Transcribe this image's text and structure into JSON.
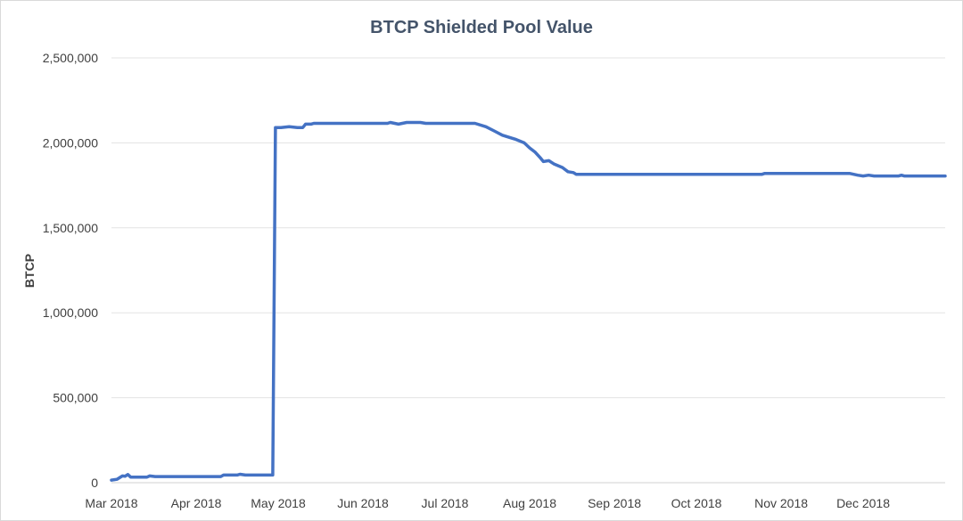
{
  "chart_data": {
    "type": "line",
    "title": "BTCP  Shielded Pool Value",
    "xlabel": "",
    "ylabel": "BTCP",
    "ylim": [
      0,
      2500000
    ],
    "yticks": [
      0,
      500000,
      1000000,
      1500000,
      2000000,
      2500000
    ],
    "ytick_labels": [
      "0",
      "500,000",
      "1,000,000",
      "1,500,000",
      "2,000,000",
      "2,500,000"
    ],
    "xlim": [
      "2018-03-01",
      "2018-12-31"
    ],
    "xtick_labels": [
      {
        "date": "2018-03-01",
        "label": "Mar 2018"
      },
      {
        "date": "2018-04-01",
        "label": "Apr 2018"
      },
      {
        "date": "2018-05-01",
        "label": "May 2018"
      },
      {
        "date": "2018-06-01",
        "label": "Jun 2018"
      },
      {
        "date": "2018-07-01",
        "label": "Jul 2018"
      },
      {
        "date": "2018-08-01",
        "label": "Aug 2018"
      },
      {
        "date": "2018-09-01",
        "label": "Sep 2018"
      },
      {
        "date": "2018-10-01",
        "label": "Oct 2018"
      },
      {
        "date": "2018-11-01",
        "label": "Nov 2018"
      },
      {
        "date": "2018-12-01",
        "label": "Dec 2018"
      }
    ],
    "grid": true,
    "legend": "none",
    "series": [
      {
        "color": "#4472c4",
        "points": [
          [
            "2018-03-01",
            15000
          ],
          [
            "2018-03-03",
            20000
          ],
          [
            "2018-03-05",
            40000
          ],
          [
            "2018-03-06",
            38000
          ],
          [
            "2018-03-07",
            48000
          ],
          [
            "2018-03-08",
            33000
          ],
          [
            "2018-03-14",
            33000
          ],
          [
            "2018-03-15",
            40000
          ],
          [
            "2018-03-17",
            36000
          ],
          [
            "2018-04-10",
            36000
          ],
          [
            "2018-04-11",
            45000
          ],
          [
            "2018-04-16",
            45000
          ],
          [
            "2018-04-17",
            50000
          ],
          [
            "2018-04-19",
            45000
          ],
          [
            "2018-04-29",
            45000
          ],
          [
            "2018-04-30",
            2090000
          ],
          [
            "2018-05-02",
            2090000
          ],
          [
            "2018-05-05",
            2095000
          ],
          [
            "2018-05-08",
            2090000
          ],
          [
            "2018-05-10",
            2090000
          ],
          [
            "2018-05-11",
            2110000
          ],
          [
            "2018-05-13",
            2110000
          ],
          [
            "2018-05-14",
            2115000
          ],
          [
            "2018-06-10",
            2115000
          ],
          [
            "2018-06-11",
            2120000
          ],
          [
            "2018-06-14",
            2110000
          ],
          [
            "2018-06-17",
            2120000
          ],
          [
            "2018-06-22",
            2120000
          ],
          [
            "2018-06-24",
            2115000
          ],
          [
            "2018-07-12",
            2115000
          ],
          [
            "2018-07-16",
            2095000
          ],
          [
            "2018-07-19",
            2070000
          ],
          [
            "2018-07-22",
            2045000
          ],
          [
            "2018-07-25",
            2030000
          ],
          [
            "2018-07-27",
            2020000
          ],
          [
            "2018-07-30",
            2000000
          ],
          [
            "2018-08-01",
            1970000
          ],
          [
            "2018-08-03",
            1945000
          ],
          [
            "2018-08-05",
            1910000
          ],
          [
            "2018-08-06",
            1890000
          ],
          [
            "2018-08-08",
            1895000
          ],
          [
            "2018-08-10",
            1875000
          ],
          [
            "2018-08-13",
            1855000
          ],
          [
            "2018-08-15",
            1830000
          ],
          [
            "2018-08-17",
            1825000
          ],
          [
            "2018-08-18",
            1815000
          ],
          [
            "2018-10-25",
            1815000
          ],
          [
            "2018-10-26",
            1820000
          ],
          [
            "2018-11-26",
            1820000
          ],
          [
            "2018-11-29",
            1810000
          ],
          [
            "2018-12-01",
            1805000
          ],
          [
            "2018-12-03",
            1810000
          ],
          [
            "2018-12-05",
            1805000
          ],
          [
            "2018-12-14",
            1805000
          ],
          [
            "2018-12-15",
            1810000
          ],
          [
            "2018-12-16",
            1805000
          ],
          [
            "2018-12-31",
            1805000
          ]
        ]
      }
    ]
  }
}
